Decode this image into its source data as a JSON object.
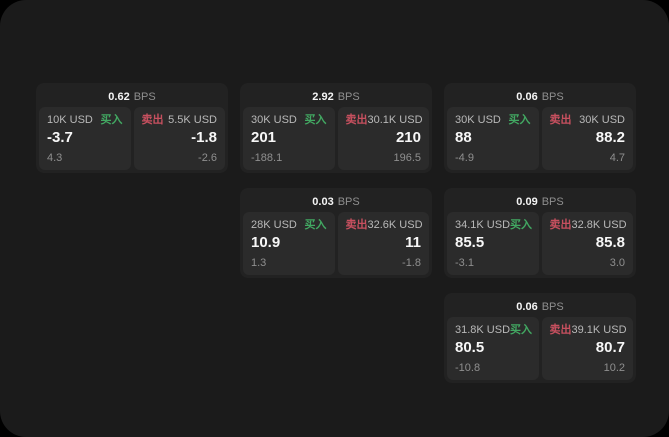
{
  "colors": {
    "outside_background": "#000000",
    "page_background": "#1b1b1b",
    "card_background": "#222222",
    "panel_background": "#2b2b2b",
    "buy_green": "#42a862",
    "sell_red": "#c7505f",
    "primary_text": "#f5f5f5",
    "muted_text": "#8f8f8f"
  },
  "bps_unit": "BPS",
  "cards": [
    {
      "bps_value": "0.62",
      "buy": {
        "size": "10K USD",
        "tag": "买入",
        "price": "-3.7",
        "delta": "4.3"
      },
      "sell": {
        "tag": "卖出",
        "size": "5.5K USD",
        "price": "-1.8",
        "delta": "-2.6"
      }
    },
    {
      "bps_value": "2.92",
      "buy": {
        "size": "30K USD",
        "tag": "买入",
        "price": "201",
        "delta": "-188.1"
      },
      "sell": {
        "tag": "卖出",
        "size": "30.1K USD",
        "price": "210",
        "delta": "196.5"
      }
    },
    {
      "bps_value": "0.06",
      "buy": {
        "size": "30K USD",
        "tag": "买入",
        "price": "88",
        "delta": "-4.9"
      },
      "sell": {
        "tag": "卖出",
        "size": "30K USD",
        "price": "88.2",
        "delta": "4.7"
      }
    },
    {
      "bps_value": "0.03",
      "buy": {
        "size": "28K USD",
        "tag": "买入",
        "price": "10.9",
        "delta": "1.3"
      },
      "sell": {
        "tag": "卖出",
        "size": "32.6K USD",
        "price": "11",
        "delta": "-1.8"
      }
    },
    {
      "bps_value": "0.09",
      "buy": {
        "size": "34.1K USD",
        "tag": "买入",
        "price": "85.5",
        "delta": "-3.1"
      },
      "sell": {
        "tag": "卖出",
        "size": "32.8K USD",
        "price": "85.8",
        "delta": "3.0"
      }
    },
    {
      "bps_value": "0.06",
      "buy": {
        "size": "31.8K USD",
        "tag": "买入",
        "price": "80.5",
        "delta": "-10.8"
      },
      "sell": {
        "tag": "卖出",
        "size": "39.1K USD",
        "price": "80.7",
        "delta": "10.2"
      }
    }
  ]
}
